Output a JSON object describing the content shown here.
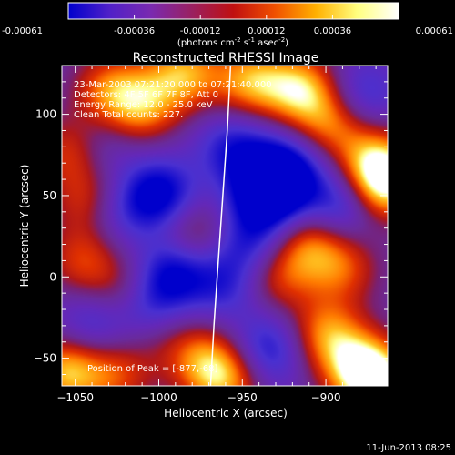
{
  "chart_data": {
    "type": "heatmap",
    "title": "Reconstructed RHESSI Image",
    "xlabel": "Heliocentric X (arcsec)",
    "ylabel": "Heliocentric Y (arcsec)",
    "xlim": [
      -1058,
      -863
    ],
    "ylim": [
      -67,
      130
    ],
    "xticks": [
      -1050,
      -1000,
      -950,
      -900
    ],
    "yticks": [
      -50,
      0,
      50,
      100
    ],
    "colorbar": {
      "label": "(photons cm",
      "label_sup1": "-2",
      "label_mid1": " s",
      "label_sup2": "-1",
      "label_mid2": " asec",
      "label_sup3": "-2",
      "label_end": ")",
      "range": [
        -0.00061,
        0.00061
      ],
      "ticks": [
        "-0.00061",
        "-0.00036",
        "-0.00012",
        "0.00012",
        "0.00036",
        "0.00061"
      ],
      "stops": [
        "#0000cc",
        "#5020c8",
        "#7a2ab0",
        "#9a2060",
        "#c01010",
        "#f05000",
        "#ffb000",
        "#ffff80",
        "#ffffff"
      ]
    },
    "annotations": [
      "23-Mar-2003 07:21:20.000 to 07:21:40.000",
      "Detectors: 4F 5F 6F 7F 8F, Att 0",
      "Energy Range: 12.0 - 25.0 keV",
      "Clean    Total counts: 227."
    ],
    "peak_label": "Position of Peak = [-877,-68]",
    "limb": [
      [
        -969,
        -67
      ],
      [
        -967,
        -30
      ],
      [
        -965,
        0
      ],
      [
        -963,
        30
      ],
      [
        -961,
        60
      ],
      [
        -959,
        90
      ],
      [
        -957,
        130
      ]
    ],
    "blobs": [
      {
        "x": -1055,
        "y": -58,
        "v": 1.0
      },
      {
        "x": -1050,
        "y": 78,
        "v": 0.9
      },
      {
        "x": -1040,
        "y": 45,
        "v": 0.8
      },
      {
        "x": -1030,
        "y": 115,
        "v": 0.7
      },
      {
        "x": -1010,
        "y": 105,
        "v": 0.8
      },
      {
        "x": -985,
        "y": 125,
        "v": 0.9
      },
      {
        "x": -1020,
        "y": -10,
        "v": 0.5
      },
      {
        "x": -1000,
        "y": -30,
        "v": 0.5
      },
      {
        "x": -980,
        "y": 25,
        "v": 0.6
      },
      {
        "x": -975,
        "y": -50,
        "v": 0.6
      },
      {
        "x": -945,
        "y": 120,
        "v": 0.9
      },
      {
        "x": -915,
        "y": 115,
        "v": 1.0
      },
      {
        "x": -895,
        "y": 95,
        "v": 0.8
      },
      {
        "x": -870,
        "y": 70,
        "v": 0.9
      },
      {
        "x": -865,
        "y": 55,
        "v": 1.0
      },
      {
        "x": -910,
        "y": 20,
        "v": 0.7
      },
      {
        "x": -890,
        "y": 5,
        "v": 0.6
      },
      {
        "x": -930,
        "y": 0,
        "v": 0.6
      },
      {
        "x": -900,
        "y": -35,
        "v": 0.8
      },
      {
        "x": -880,
        "y": -55,
        "v": 0.9
      },
      {
        "x": -868,
        "y": -66,
        "v": 1.0
      },
      {
        "x": -1045,
        "y": 10,
        "v": 0.6
      },
      {
        "x": -1025,
        "y": -60,
        "v": 0.6
      },
      {
        "x": -960,
        "y": -62,
        "v": 0.9
      },
      {
        "x": -1040,
        "y": 80,
        "v": -0.6
      },
      {
        "x": -1000,
        "y": 50,
        "v": -0.9
      },
      {
        "x": -990,
        "y": 5,
        "v": -0.8
      },
      {
        "x": -1005,
        "y": -20,
        "v": -0.9
      },
      {
        "x": -935,
        "y": 50,
        "v": -1.0
      },
      {
        "x": -925,
        "y": 65,
        "v": -0.9
      },
      {
        "x": -955,
        "y": 80,
        "v": -0.6
      },
      {
        "x": -890,
        "y": 45,
        "v": -0.7
      },
      {
        "x": -960,
        "y": -5,
        "v": -0.5
      },
      {
        "x": -935,
        "y": -45,
        "v": -0.7
      },
      {
        "x": -1030,
        "y": 40,
        "v": -0.6
      },
      {
        "x": -1040,
        "y": -30,
        "v": -0.5
      },
      {
        "x": -880,
        "y": 110,
        "v": -0.6
      },
      {
        "x": -945,
        "y": 20,
        "v": -0.6
      }
    ]
  },
  "footer": {
    "date": "11-Jun-2013 08:25"
  }
}
